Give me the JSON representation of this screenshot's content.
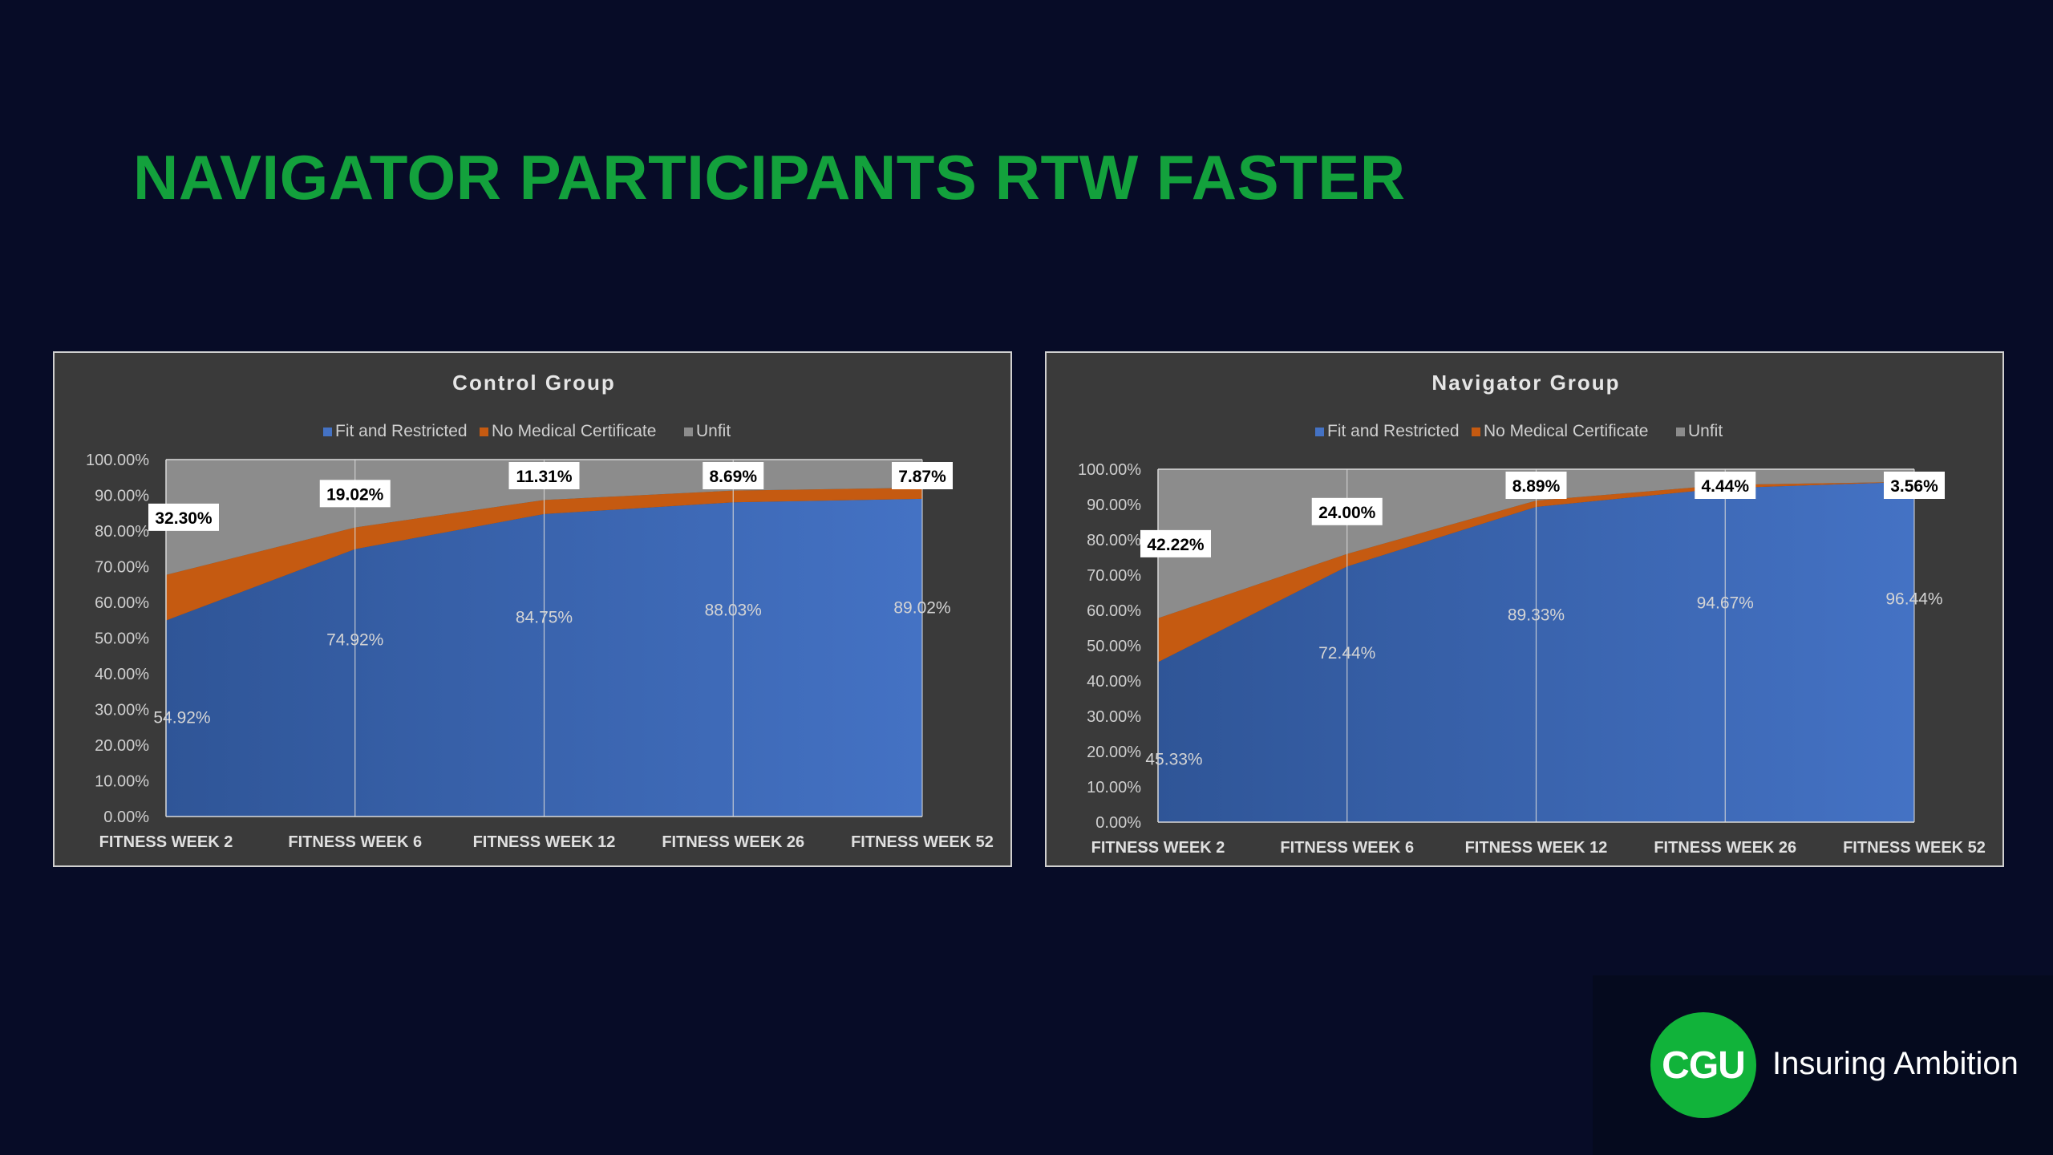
{
  "slide": {
    "title": "NAVIGATOR PARTICIPANTS RTW FASTER"
  },
  "brand": {
    "logo_text": "CGU",
    "tagline": "Insuring Ambition",
    "color": "#11b33a"
  },
  "colors": {
    "fit": "#4472c4",
    "fit_dark": "#2f5597",
    "no_cert": "#c55a11",
    "unfit": "#8c8c8c",
    "panel_bg": "#3a3a3a"
  },
  "chart_data": [
    {
      "type": "area",
      "stacked": true,
      "title": "Control Group",
      "categories": [
        "FITNESS WEEK 2",
        "FITNESS WEEK 6",
        "FITNESS WEEK 12",
        "FITNESS WEEK 26",
        "FITNESS WEEK 52"
      ],
      "yticks": [
        "0.00%",
        "10.00%",
        "20.00%",
        "30.00%",
        "40.00%",
        "50.00%",
        "60.00%",
        "70.00%",
        "80.00%",
        "90.00%",
        "100.00%"
      ],
      "ylim": [
        0,
        100
      ],
      "legend": "top",
      "grid": "vertical",
      "series": [
        {
          "name": "Fit and Restricted",
          "values": [
            54.92,
            74.92,
            84.75,
            88.03,
            89.02
          ],
          "labels": [
            "54.92%",
            "74.92%",
            "84.75%",
            "88.03%",
            "89.02%"
          ]
        },
        {
          "name": "No Medical Certificate",
          "values": [
            12.78,
            6.06,
            3.94,
            3.28,
            3.11
          ]
        },
        {
          "name": "Unfit",
          "values": [
            32.3,
            19.02,
            11.31,
            8.69,
            7.87
          ],
          "labels": [
            "32.30%",
            "19.02%",
            "11.31%",
            "8.69%",
            "7.87%"
          ]
        }
      ]
    },
    {
      "type": "area",
      "stacked": true,
      "title": "Navigator Group",
      "categories": [
        "FITNESS WEEK 2",
        "FITNESS WEEK 6",
        "FITNESS WEEK 12",
        "FITNESS WEEK 26",
        "FITNESS WEEK 52"
      ],
      "yticks": [
        "0.00%",
        "10.00%",
        "20.00%",
        "30.00%",
        "40.00%",
        "50.00%",
        "60.00%",
        "70.00%",
        "80.00%",
        "90.00%",
        "100.00%"
      ],
      "ylim": [
        0,
        100
      ],
      "legend": "top",
      "grid": "vertical",
      "series": [
        {
          "name": "Fit and Restricted",
          "values": [
            45.33,
            72.44,
            89.33,
            94.67,
            96.44
          ],
          "labels": [
            "45.33%",
            "72.44%",
            "89.33%",
            "94.67%",
            "96.44%"
          ]
        },
        {
          "name": "No Medical Certificate",
          "values": [
            12.45,
            3.56,
            1.78,
            0.89,
            0.0
          ]
        },
        {
          "name": "Unfit",
          "values": [
            42.22,
            24.0,
            8.89,
            4.44,
            3.56
          ],
          "labels": [
            "42.22%",
            "24.00%",
            "8.89%",
            "4.44%",
            "3.56%"
          ]
        }
      ]
    }
  ]
}
